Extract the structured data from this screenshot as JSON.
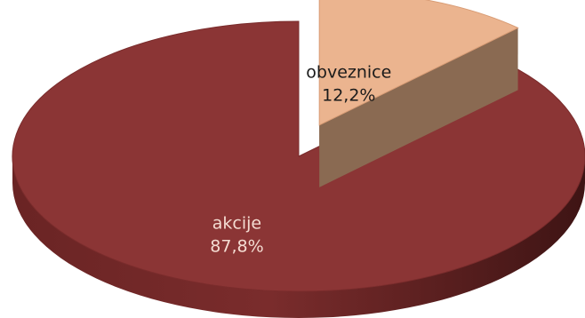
{
  "chart_data": {
    "type": "pie",
    "style": "3d-exploded",
    "title": "",
    "slices": [
      {
        "label": "akcije",
        "value": 87.8,
        "value_label": "87,8%",
        "color": "#8b3535",
        "label_color": "#f4dcd2"
      },
      {
        "label": "obveznice",
        "value": 12.2,
        "value_label": "12,2%",
        "color": "#ebb48f",
        "label_color": "#1a1a1a"
      }
    ],
    "legend": "none"
  }
}
